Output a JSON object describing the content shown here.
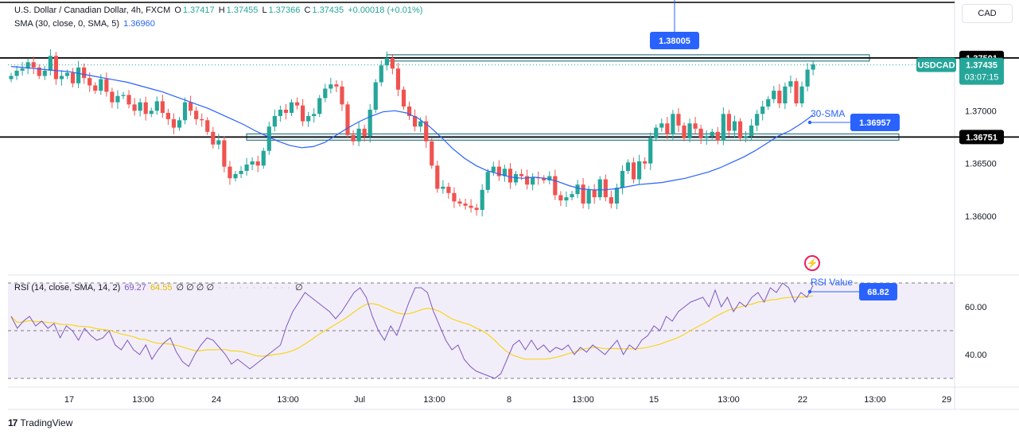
{
  "header": {
    "symbol_title": "U.S. Dollar / Canadian Dollar, 4h, FXCM",
    "ohlc": [
      {
        "label": "O",
        "value": "1.37417"
      },
      {
        "label": "H",
        "value": "1.37455"
      },
      {
        "label": "L",
        "value": "1.37366"
      },
      {
        "label": "C",
        "value": "1.37435"
      }
    ],
    "change": "+0.00018 (+0.01%)",
    "sma_legend": "SMA (30, close, 0, SMA, 5)",
    "sma_value": "1.36960",
    "rsi_legend": "RSI (14, close, SMA, 14, 2)",
    "rsi_value": "69.27",
    "rsi_ma_value": "64.55",
    "rsi_zeros": "∅ ∅ ∅ ∅",
    "rsi_extra": "∅",
    "currency": "CAD"
  },
  "footer": {
    "brand": "TradingView"
  },
  "chart_data": {
    "type": "candlestick",
    "symbol": "USDCAD",
    "interval": "4h",
    "x_tick_labels": [
      "17",
      "13:00",
      "24",
      "13:00",
      "Jul",
      "13:00",
      "8",
      "13:00",
      "15",
      "13:00",
      "22",
      "13:00",
      "29"
    ],
    "price_axis": {
      "ylim": [
        1.3545,
        1.3805
      ],
      "tick_labels": [
        "1.37000",
        "1.36500",
        "1.36000"
      ]
    },
    "rsi_axis": {
      "ylim": [
        27,
        73
      ],
      "tick_labels": [
        "60.00",
        "40.00"
      ],
      "band": [
        30,
        70
      ],
      "midline": 50
    },
    "close_series": [
      1.3733,
      1.3738,
      1.374,
      1.3746,
      1.3741,
      1.3733,
      1.3738,
      1.3752,
      1.373,
      1.3733,
      1.3736,
      1.3726,
      1.3741,
      1.3731,
      1.3724,
      1.3719,
      1.373,
      1.3718,
      1.3708,
      1.3714,
      1.3715,
      1.3706,
      1.37,
      1.3708,
      1.3697,
      1.37,
      1.3709,
      1.3698,
      1.3692,
      1.3684,
      1.3691,
      1.3708,
      1.37,
      1.3692,
      1.3691,
      1.368,
      1.3668,
      1.3672,
      1.3647,
      1.3636,
      1.364,
      1.3643,
      1.3649,
      1.3652,
      1.3648,
      1.3662,
      1.3685,
      1.3695,
      1.3701,
      1.3698,
      1.3708,
      1.3705,
      1.369,
      1.3695,
      1.3697,
      1.3712,
      1.3721,
      1.3725,
      1.3723,
      1.3706,
      1.3677,
      1.3671,
      1.3683,
      1.3676,
      1.3701,
      1.3727,
      1.3743,
      1.375,
      1.374,
      1.372,
      1.3704,
      1.3695,
      1.3685,
      1.369,
      1.3671,
      1.3648,
      1.3626,
      1.3628,
      1.3622,
      1.3614,
      1.3612,
      1.361,
      1.3608,
      1.3606,
      1.3625,
      1.3642,
      1.3647,
      1.3638,
      1.3645,
      1.3632,
      1.364,
      1.3638,
      1.363,
      1.3637,
      1.3636,
      1.3634,
      1.3638,
      1.362,
      1.3615,
      1.3618,
      1.3621,
      1.363,
      1.3612,
      1.3625,
      1.3618,
      1.3635,
      1.3618,
      1.3612,
      1.3627,
      1.3643,
      1.3651,
      1.3635,
      1.3652,
      1.365,
      1.3674,
      1.3684,
      1.3688,
      1.3678,
      1.3697,
      1.3686,
      1.3674,
      1.3688,
      1.3683,
      1.3674,
      1.3676,
      1.368,
      1.3672,
      1.3697,
      1.3681,
      1.369,
      1.3674,
      1.3676,
      1.3686,
      1.3697,
      1.3704,
      1.3711,
      1.3719,
      1.3707,
      1.3723,
      1.3728,
      1.3707,
      1.3723,
      1.3739,
      1.3744
    ],
    "sma_series_label": "30-SMA",
    "sma_series": [
      1.3742,
      1.3741,
      1.374,
      1.3739,
      1.3738,
      1.3737,
      1.3735,
      1.3733,
      1.3731,
      1.3729,
      1.3727,
      1.3724,
      1.3721,
      1.3718,
      1.3714,
      1.371,
      1.3706,
      1.3702,
      1.3697,
      1.3692,
      1.3687,
      1.3681,
      1.3676,
      1.3671,
      1.3667,
      1.3665,
      1.3666,
      1.367,
      1.3677,
      1.3684,
      1.369,
      1.3695,
      1.3699,
      1.37,
      1.3698,
      1.3693,
      1.3685,
      1.3675,
      1.3664,
      1.3655,
      1.3648,
      1.3643,
      1.364,
      1.3637,
      1.3636,
      1.3637,
      1.3636,
      1.3633,
      1.3629,
      1.3626,
      1.3625,
      1.3625,
      1.3626,
      1.3628,
      1.363,
      1.3631,
      1.3632,
      1.3634,
      1.3636,
      1.3639,
      1.3642,
      1.3646,
      1.3651,
      1.3656,
      1.3662,
      1.3669,
      1.3676,
      1.3681,
      1.3688,
      1.3696
    ],
    "resistance_level": 1.37501,
    "support_level": 1.36751,
    "last_price": 1.37435,
    "callouts": {
      "high_label": "1.38005",
      "sma_label": "30-SMA",
      "sma_value": "1.36957",
      "rsi_label": "RSI Value",
      "rsi_value": "68.82",
      "resistance_label": "1.37501",
      "support_label": "1.36751",
      "ticker_label": "USDCAD",
      "ticker_price": "1.37435",
      "countdown": "03:07:15"
    },
    "rsi_series": [
      56,
      51,
      54,
      56,
      52,
      54,
      51,
      53,
      47,
      52,
      50,
      46,
      51,
      48,
      46,
      47,
      50,
      44,
      42,
      46,
      42,
      40,
      44,
      38,
      42,
      45,
      47,
      41,
      37,
      35,
      40,
      44,
      47,
      46,
      43,
      40,
      36,
      38,
      36,
      34,
      36,
      38,
      40,
      42,
      44,
      52,
      58,
      62,
      66,
      64,
      62,
      60,
      58,
      55,
      58,
      62,
      66,
      68,
      64,
      56,
      50,
      46,
      52,
      48,
      55,
      62,
      68,
      68,
      66,
      58,
      52,
      46,
      42,
      44,
      38,
      35,
      33,
      32,
      31,
      30,
      32,
      38,
      44,
      46,
      42,
      46,
      42,
      44,
      41,
      43,
      42,
      44,
      40,
      43,
      41,
      44,
      42,
      40,
      43,
      46,
      40,
      44,
      42,
      46,
      48,
      52,
      50,
      56,
      54,
      58,
      60,
      62,
      63,
      64,
      60,
      67,
      60,
      64,
      58,
      62,
      60,
      64,
      66,
      62,
      68,
      66,
      70,
      68,
      62,
      66,
      64,
      69
    ]
  },
  "colors": {
    "up": "#26a69a",
    "down": "#ef5350",
    "sma": "#2962ff",
    "rsi": "#7e57c2",
    "rsi_ma": "#f7d51d",
    "rsi_band": "#7e57c2",
    "level": "#000000",
    "callout": "#2962ff",
    "box_fill": "#e8f3f7",
    "box_edge": "#1e6a72"
  }
}
